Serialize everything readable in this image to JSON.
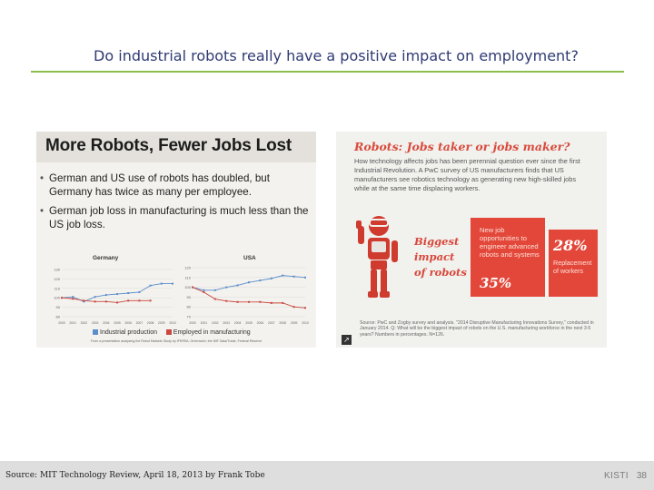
{
  "slide": {
    "title": "Do industrial robots really have a positive impact on employment?"
  },
  "left_panel": {
    "heading": "More Robots, Fewer Jobs Lost",
    "bullets": [
      "German and US use of robots has doubled, but Germany has twice as many per employee.",
      "German job loss in manufacturing is much less than the US job loss."
    ],
    "legend": {
      "series1": "Industrial production",
      "series2": "Employed in manufacturing"
    },
    "note": "From a presentation analyzing the Robot Markets Study by IFR/RIA, Greenwich, the IMF Data/Trade, Federal Reserve"
  },
  "chart_data": [
    {
      "type": "line",
      "title": "Germany",
      "categories": [
        "2000",
        "2001",
        "2002",
        "2003",
        "2004",
        "2005",
        "2006",
        "2007",
        "2008",
        "2009",
        "2010"
      ],
      "series": [
        {
          "name": "Industrial production",
          "values": [
            100,
            101,
            96,
            101,
            103,
            104,
            105,
            106,
            113,
            115,
            115
          ]
        },
        {
          "name": "Employed in manufacturing",
          "values": [
            100,
            99,
            97,
            96,
            96,
            95,
            97,
            97,
            97,
            null,
            null
          ]
        }
      ],
      "ylim": [
        80,
        130
      ],
      "yticks": [
        80,
        90,
        100,
        110,
        120,
        130
      ],
      "colors": {
        "Industrial production": "#5b8ecb",
        "Employed in manufacturing": "#c9483f"
      }
    },
    {
      "type": "line",
      "title": "USA",
      "categories": [
        "2000",
        "2001",
        "2002",
        "2003",
        "2004",
        "2005",
        "2006",
        "2007",
        "2008",
        "2009",
        "2010"
      ],
      "series": [
        {
          "name": "Industrial production",
          "values": [
            100,
            97,
            97,
            100,
            102,
            105,
            107,
            109,
            112,
            111,
            110
          ]
        },
        {
          "name": "Employed in manufacturing",
          "values": [
            100,
            95,
            88,
            86,
            85,
            85,
            85,
            84,
            84,
            80,
            79
          ]
        }
      ],
      "ylim": [
        70,
        120
      ],
      "yticks": [
        70,
        80,
        90,
        100,
        110,
        120
      ],
      "colors": {
        "Industrial production": "#5b8ecb",
        "Employed in manufacturing": "#c9483f"
      }
    }
  ],
  "right_panel": {
    "title": "Robots: Jobs taker or jobs maker?",
    "body": "How technology affects jobs has been perennial question ever since the first Industrial Revolution. A PwC survey of US manufacturers finds that US manufacturers see robotics technology as generating new high-skilled jobs while at the same time displacing workers.",
    "biggest_line1": "Biggest",
    "biggest_line2": "impact",
    "biggest_line3": "of robots",
    "box1_text": "New job opportunities to engineer advanced robots and systems",
    "box1_pct": "35%",
    "box2_pct": "28%",
    "box2_text": "Replacement of workers",
    "source": "Source: PwC and Zogby survey and analysis. \"2014 Disruptive Manufacturing Innovations Survey,\" conducted in January 2014. Q: What will be the biggest impact of robots on the U.S. manufacturing workforce in the next 3-5 years? Numbers in percentages. N=126."
  },
  "footer": {
    "source": "Source: MIT Technology Review, April 18, 2013 by Frank Tobe",
    "org": "KISTI",
    "page": "38"
  }
}
